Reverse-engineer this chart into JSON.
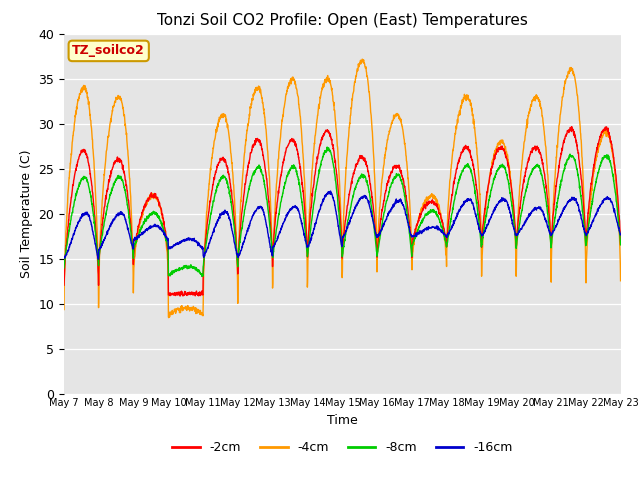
{
  "title": "Tonzi Soil CO2 Profile: Open (East) Temperatures",
  "xlabel": "Time",
  "ylabel": "Soil Temperature (C)",
  "ylim": [
    0,
    40
  ],
  "yticks": [
    0,
    5,
    10,
    15,
    20,
    25,
    30,
    35,
    40
  ],
  "annotation_text": "TZ_soilco2",
  "annotation_color": "#cc0000",
  "annotation_bg": "#ffffcc",
  "annotation_border": "#cc9900",
  "colors": {
    "-2cm": "#ff0000",
    "-4cm": "#ff9900",
    "-8cm": "#00cc00",
    "-16cm": "#0000cc"
  },
  "bg_color": "#e5e5e5",
  "n_days": 16,
  "points_per_day": 144
}
